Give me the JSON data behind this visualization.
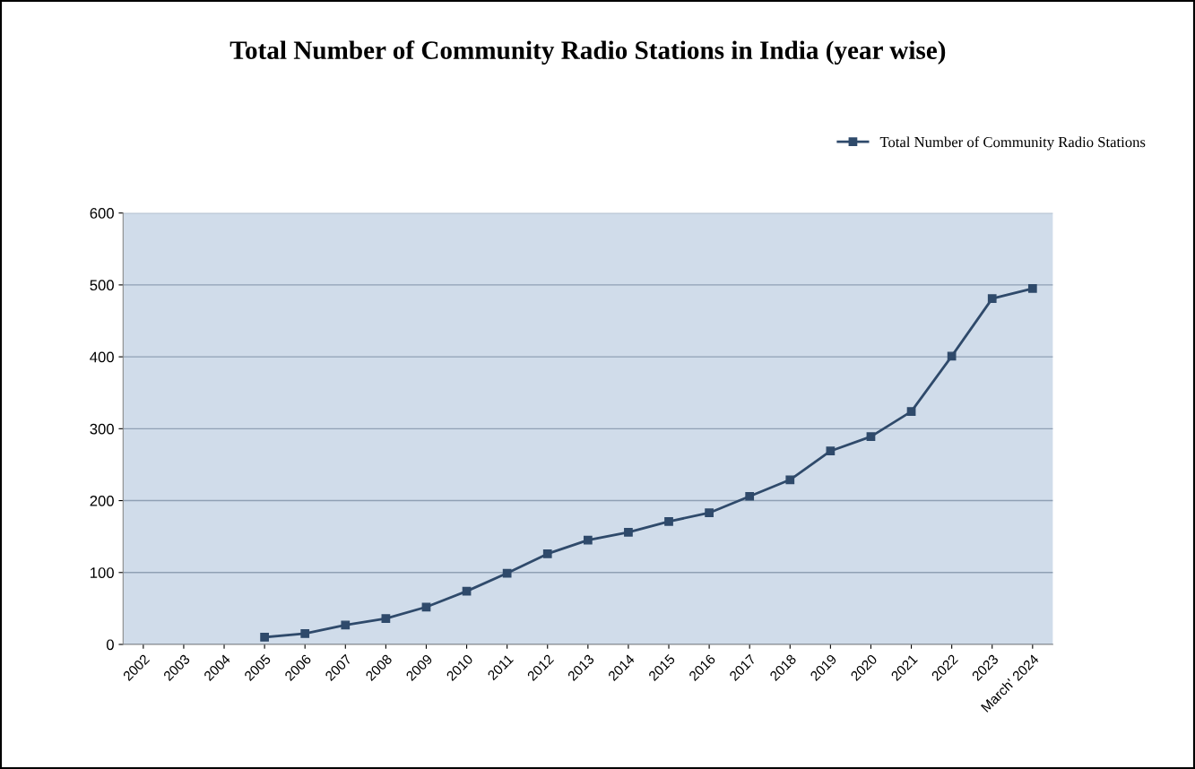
{
  "chart_data": {
    "type": "line",
    "title": "Total Number of Community Radio Stations in India (year wise)",
    "categories": [
      "2002",
      "2003",
      "2004",
      "2005",
      "2006",
      "2007",
      "2008",
      "2009",
      "2010",
      "2011",
      "2012",
      "2013",
      "2014",
      "2015",
      "2016",
      "2017",
      "2018",
      "2019",
      "2020",
      "2021",
      "2022",
      "2023",
      "March' 2024"
    ],
    "series": [
      {
        "name": "Total Number of Community Radio Stations",
        "color": "#2f4a6b",
        "values": [
          null,
          null,
          null,
          10,
          15,
          27,
          36,
          52,
          74,
          99,
          126,
          145,
          156,
          171,
          183,
          206,
          229,
          269,
          289,
          324,
          401,
          481,
          495
        ]
      }
    ],
    "ylim": [
      0,
      600
    ],
    "yticks": [
      0,
      100,
      200,
      300,
      400,
      500,
      600
    ],
    "grid": "y",
    "legend": "top right",
    "marker": "square",
    "line_style": "solid"
  }
}
